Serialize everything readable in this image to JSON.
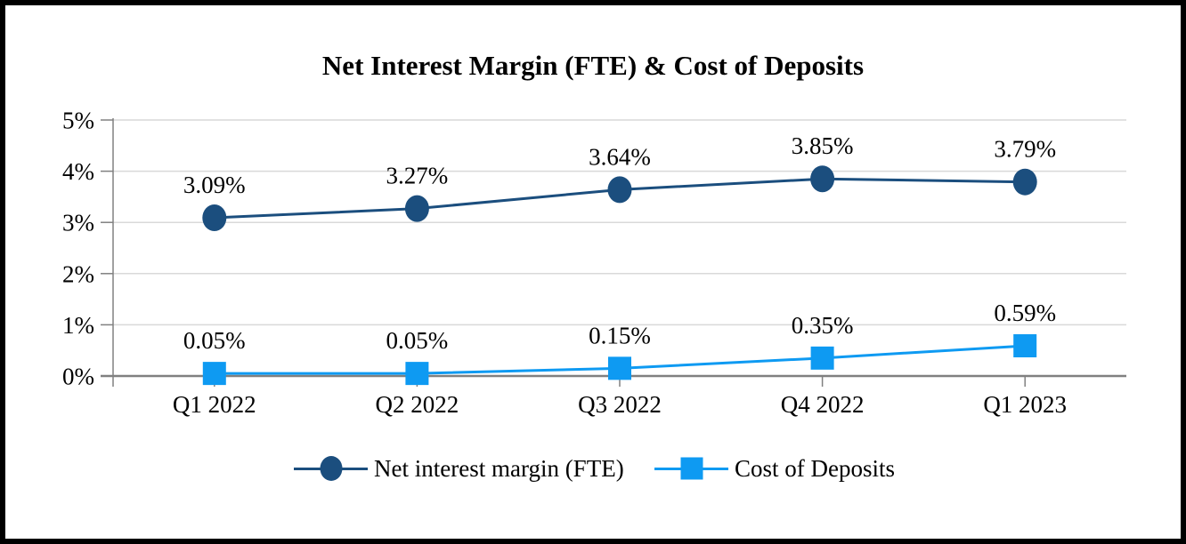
{
  "chart_data": {
    "type": "line",
    "title": "Net Interest Margin (FTE) & Cost of Deposits",
    "categories": [
      "Q1 2022",
      "Q2 2022",
      "Q3 2022",
      "Q4 2022",
      "Q1 2023"
    ],
    "series": [
      {
        "name": "Net interest margin (FTE)",
        "values": [
          3.09,
          3.27,
          3.64,
          3.85,
          3.79
        ],
        "labels": [
          "3.09%",
          "3.27%",
          "3.64%",
          "3.85%",
          "3.79%"
        ],
        "color": "#1B4E7E",
        "marker": "circle"
      },
      {
        "name": "Cost of Deposits",
        "values": [
          0.05,
          0.05,
          0.15,
          0.35,
          0.59
        ],
        "labels": [
          "0.05%",
          "0.05%",
          "0.15%",
          "0.35%",
          "0.59%"
        ],
        "color": "#0E9AF2",
        "marker": "square"
      }
    ],
    "y_axis": {
      "min": 0,
      "max": 5,
      "step": 1,
      "tick_labels": [
        "0%",
        "1%",
        "2%",
        "3%",
        "4%",
        "5%"
      ]
    },
    "grid": true,
    "legend_position": "bottom",
    "colors": {
      "gridline": "#D9D9D9",
      "axis": "#808080",
      "text": "#000000",
      "background": "#FFFFFF",
      "frame_border": "#000000"
    }
  }
}
